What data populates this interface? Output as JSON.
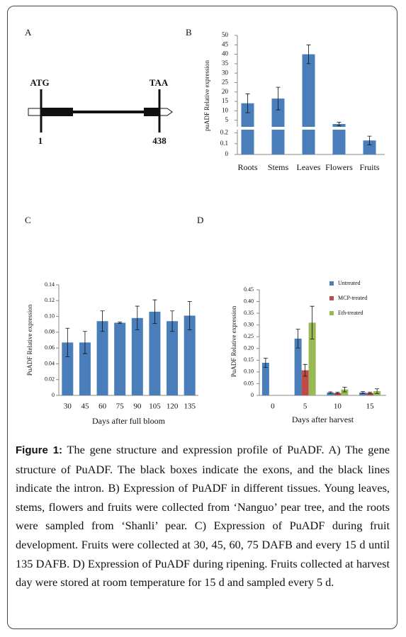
{
  "gene_diagram": {
    "label": "A",
    "start_codon": "ATG",
    "stop_codon": "TAA",
    "start_pos": "1",
    "end_pos": "438"
  },
  "chart_data": [
    {
      "type": "bar",
      "panel_label": "B",
      "ylabel": "puADF Relative expression",
      "categories": [
        "Roots",
        "Stems",
        "Leaves",
        "Flowers",
        "Fruits"
      ],
      "values": [
        14,
        16.5,
        40,
        3,
        0.13
      ],
      "errors": [
        5,
        6,
        5,
        1,
        0.04
      ],
      "color": "#4a7ebb",
      "axis_segments": [
        {
          "ylim": [
            0,
            0.23
          ],
          "yticks": [
            0,
            0.1,
            0.2
          ]
        },
        {
          "ylim": [
            1.5,
            50
          ],
          "yticks": [
            5,
            10,
            15,
            20,
            25,
            30,
            35,
            40,
            45,
            50
          ]
        }
      ]
    },
    {
      "type": "bar",
      "panel_label": "C",
      "ylabel": "PuADF Relative expression",
      "xlabel": "Days after full bloom",
      "categories": [
        "30",
        "45",
        "60",
        "75",
        "90",
        "105",
        "120",
        "135"
      ],
      "values": [
        0.067,
        0.067,
        0.094,
        0.092,
        0.098,
        0.106,
        0.094,
        0.101
      ],
      "errors": [
        0.018,
        0.014,
        0.013,
        0.001,
        0.015,
        0.015,
        0.013,
        0.018
      ],
      "color": "#4a7ebb",
      "ylim": [
        0,
        0.14
      ],
      "yticks": [
        0,
        0.02,
        0.04,
        0.06,
        0.08,
        {
          "value": 0.1,
          "label": "0.10"
        },
        0.12,
        0.14
      ]
    },
    {
      "type": "grouped_bar",
      "panel_label": "D",
      "ylabel": "PuADF Relative expression",
      "xlabel": "Days after harvest",
      "categories": [
        "0",
        "5",
        "10",
        "15"
      ],
      "series": [
        {
          "name": "Untreated",
          "color": "#4a7ebb",
          "values": [
            0.139,
            0.242,
            0.012,
            0.012
          ],
          "errors": [
            0.02,
            0.04,
            0.003,
            0.004
          ]
        },
        {
          "name": "MCP-treated",
          "color": "#be4b48",
          "values": [
            null,
            0.107,
            0.01,
            0.01
          ],
          "errors": [
            null,
            0.025,
            0.003,
            0.003
          ]
        },
        {
          "name": "Eth-treated",
          "color": "#98b954",
          "values": [
            null,
            0.31,
            0.025,
            0.018
          ],
          "errors": [
            null,
            0.07,
            0.01,
            0.01
          ]
        }
      ],
      "legend": "upper right",
      "ylim": [
        0,
        0.45
      ],
      "yticks": [
        0,
        0.05,
        {
          "value": 0.1,
          "label": "0.10"
        },
        0.15,
        {
          "value": 0.2,
          "label": "0.20"
        },
        0.25,
        {
          "value": 0.3,
          "label": "0.30"
        },
        0.35,
        {
          "value": 0.4,
          "label": "0.40"
        },
        0.45
      ]
    }
  ],
  "caption": {
    "label": "Figure 1:",
    "text": "The gene structure and expression profile of PuADF. A) The gene structure of PuADF. The black boxes indicate the exons, and the black lines indicate the intron. B) Expression of PuADF in different tissues. Young leaves, stems, flowers and fruits were collected from ‘Nanguo’ pear tree, and the roots were sampled from ‘Shanli’ pear. C) Expression of PuADF during fruit development. Fruits were collected at 30, 45, 60, 75 DAFB and every 15 d until 135 DAFB. D) Expression of PuADF during ripening. Fruits collected at harvest day were stored at room temperature for 15 d and sampled every 5 d."
  }
}
